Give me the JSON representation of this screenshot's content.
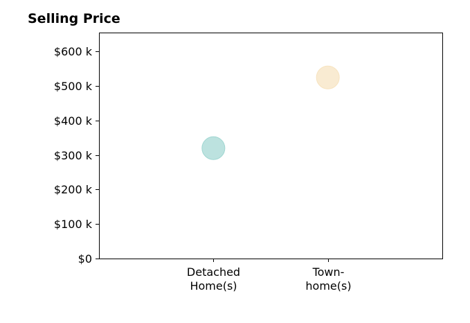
{
  "chart_data": {
    "type": "scatter",
    "title": "Selling Price",
    "xlabel": "",
    "ylabel": "",
    "categories": [
      "Detached\nHome(s)",
      "Town-\nhome(s)"
    ],
    "points": [
      {
        "category": "Detached\nHome(s)",
        "value": 320000,
        "color": "#9fd6d1"
      },
      {
        "category": "Town-\nhome(s)",
        "value": 525000,
        "color": "#f7e3bf"
      }
    ],
    "yticks": [
      {
        "value": 0,
        "label": "$0"
      },
      {
        "value": 100000,
        "label": "$100 k"
      },
      {
        "value": 200000,
        "label": "$200 k"
      },
      {
        "value": 300000,
        "label": "$300 k"
      },
      {
        "value": 400000,
        "label": "$400 k"
      },
      {
        "value": 500000,
        "label": "$500 k"
      },
      {
        "value": 600000,
        "label": "$600 k"
      }
    ],
    "ylim": [
      0,
      655000
    ],
    "xlim": [
      -1,
      2
    ],
    "grid": false,
    "legend": "none"
  }
}
